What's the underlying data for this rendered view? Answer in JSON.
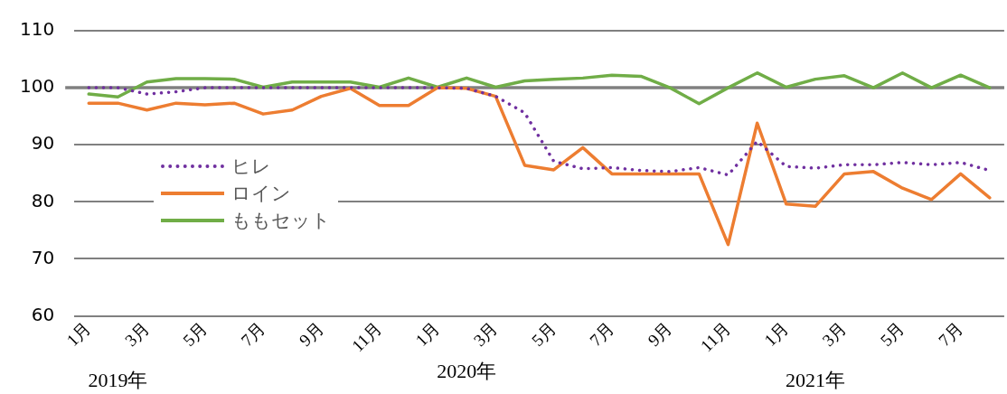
{
  "chart_data": {
    "type": "line",
    "categories": [
      "1月",
      null,
      "3月",
      null,
      "5月",
      null,
      "7月",
      null,
      "9月",
      null,
      "11月",
      null,
      "1月",
      null,
      "3月",
      null,
      "5月",
      null,
      "7月",
      null,
      "9月",
      null,
      "11月",
      null,
      "1月",
      null,
      "3月",
      null,
      "5月",
      null,
      "7月",
      null
    ],
    "series": [
      {
        "name": "ヒレ",
        "color": "#7030a0",
        "line_style": "dotted",
        "values": [
          100,
          100,
          98.9,
          99.3,
          100,
          100,
          100,
          100,
          100,
          100,
          100,
          100,
          100,
          99.9,
          98.5,
          95.6,
          87.1,
          85.8,
          86.0,
          85.5,
          85.3,
          86.0,
          84.7,
          90.6,
          86.2,
          85.9,
          86.5,
          86.5,
          86.9,
          86.5,
          86.9,
          85.5
        ]
      },
      {
        "name": "ロイン",
        "color": "#ed7d31",
        "line_style": "solid",
        "values": [
          97.3,
          97.3,
          96.1,
          97.3,
          97.0,
          97.3,
          95.4,
          96.1,
          98.5,
          99.9,
          96.9,
          96.9,
          100,
          99.9,
          98.5,
          86.4,
          85.6,
          89.5,
          84.9,
          84.9,
          84.9,
          84.9,
          72.5,
          93.8,
          79.6,
          79.2,
          84.9,
          85.3,
          82.4,
          80.4,
          84.9,
          80.7
        ]
      },
      {
        "name": "ももセット",
        "color": "#70ad47",
        "line_style": "solid",
        "values": [
          98.9,
          98.4,
          101.0,
          101.6,
          101.6,
          101.5,
          100.1,
          101.0,
          101.0,
          101.0,
          100.1,
          101.7,
          100.1,
          101.7,
          100.1,
          101.2,
          101.5,
          101.7,
          102.2,
          102.0,
          100,
          97.2,
          100,
          102.6,
          100.1,
          101.5,
          102.1,
          100,
          102.6,
          100,
          102.2,
          100
        ]
      }
    ],
    "ylim": [
      60,
      110
    ],
    "yticks": [
      60,
      70,
      80,
      90,
      100,
      110
    ],
    "grid": "y",
    "legend": "left",
    "marker": "none",
    "ref_lines": [
      {
        "axis": "y",
        "value": 100,
        "color": "#808080"
      }
    ],
    "annotations": [
      "2019年",
      "2020年",
      "2021年"
    ]
  }
}
